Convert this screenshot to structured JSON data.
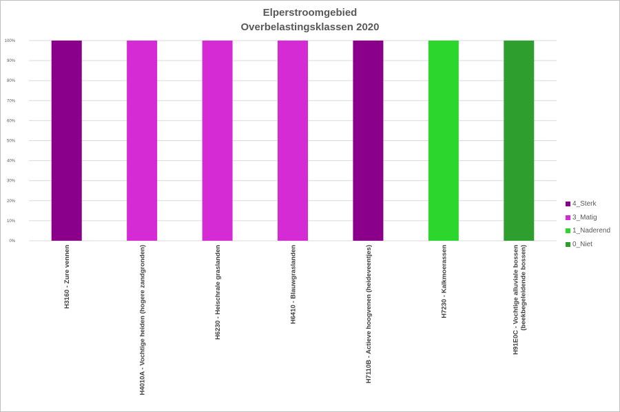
{
  "chart_data": {
    "type": "bar",
    "stacked": true,
    "title": "Elperstroomgebied",
    "subtitle": "Overbelastingsklassen 2020",
    "categories": [
      "H3160 - Zure vennen",
      "H4010A - Vochtige heiden (hogere zandgronden)",
      "H6230 - Heischrale graslanden",
      "H6410 - Blauwgraslanden",
      "H7110B - Actieve hoogvenen (heideveentjes)",
      "H7230 - Kalkmoerassen",
      "H91E0C - Vochtige alluviale bossen (beekbegeleidende bossen)"
    ],
    "series": [
      {
        "name": "4_Sterk",
        "color": "#8a008a",
        "values": [
          100,
          0,
          0,
          0,
          100,
          0,
          0
        ]
      },
      {
        "name": "3_Matig",
        "color": "#d42bd4",
        "values": [
          0,
          100,
          100,
          100,
          0,
          0,
          0
        ]
      },
      {
        "name": "1_Naderend",
        "color": "#2dd62d",
        "values": [
          0,
          0,
          0,
          0,
          0,
          100,
          0
        ]
      },
      {
        "name": "0_Niet",
        "color": "#2e9e2e",
        "values": [
          0,
          0,
          0,
          0,
          0,
          0,
          100
        ]
      }
    ],
    "y_ticks": [
      "0%",
      "10%",
      "20%",
      "30%",
      "40%",
      "50%",
      "60%",
      "70%",
      "80%",
      "90%",
      "100%"
    ],
    "ylim": [
      0,
      100
    ],
    "grid": true,
    "legend_position": "right"
  }
}
